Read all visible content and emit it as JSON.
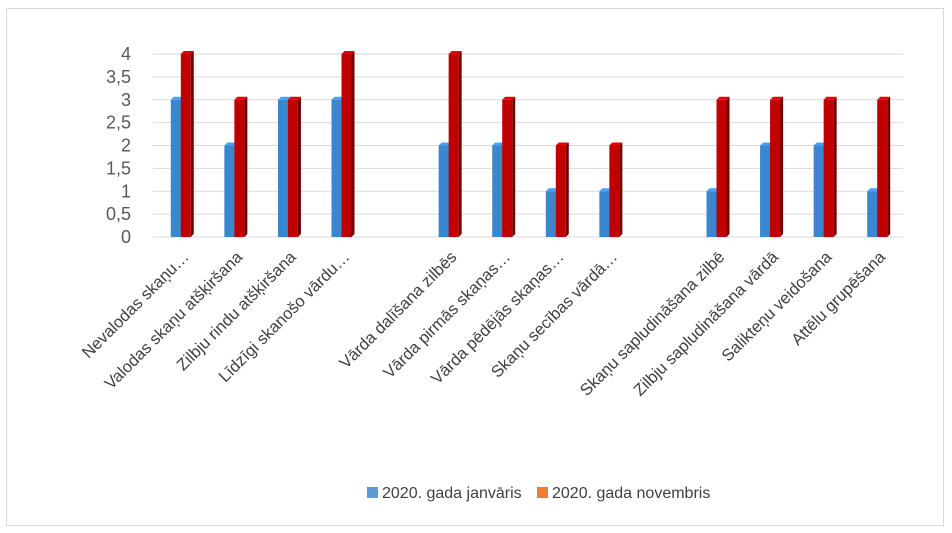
{
  "chart_data": {
    "type": "bar",
    "categories": [
      "Nevalodas skaņu…",
      "Valodas skaņu atšķiršana",
      "Zilbju rindu atšķiršana",
      "Līdzīgi skanošo vārdu…",
      "",
      "Vārda dalīšana zilbēs",
      "Vārda pirmās skaņas…",
      "Vārda pēdējās skaņas…",
      "Skaņu secības vārdā…",
      "",
      "Skaņu sapludināšana zilbē",
      "Zilbju sapludināšana vārdā",
      "Salikteņu veidošana",
      "Attēlu grupēšana"
    ],
    "series": [
      {
        "name": "2020. gada janvāris",
        "values": [
          3,
          2,
          3,
          3,
          null,
          2,
          2,
          1,
          1,
          null,
          1,
          2,
          2,
          1
        ]
      },
      {
        "name": "2020. gada novembris",
        "values": [
          4,
          3,
          3,
          4,
          null,
          4,
          3,
          2,
          2,
          null,
          3,
          3,
          3,
          3
        ]
      }
    ],
    "series_colors": [
      "#3a86cf",
      "#c00000"
    ],
    "legend_swatch_colors": [
      "#5b9bd5",
      "#ed7d31"
    ],
    "yticks": [
      "0",
      "0,5",
      "1",
      "1,5",
      "2",
      "2,5",
      "3",
      "3,5",
      "4"
    ],
    "ylim": [
      0,
      4
    ],
    "grid": true,
    "legend_position": "bottom"
  }
}
